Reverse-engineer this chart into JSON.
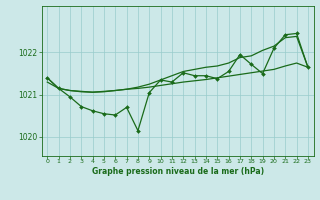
{
  "xlabel": "Graphe pression niveau de la mer (hPa)",
  "bg_color": "#cce8e8",
  "line_color": "#1a6b1a",
  "grid_color": "#99cccc",
  "ylim": [
    1019.55,
    1023.1
  ],
  "xlim": [
    -0.5,
    23.5
  ],
  "yticks": [
    1020,
    1021,
    1022
  ],
  "xticks": [
    0,
    1,
    2,
    3,
    4,
    5,
    6,
    7,
    8,
    9,
    10,
    11,
    12,
    13,
    14,
    15,
    16,
    17,
    18,
    19,
    20,
    21,
    22,
    23
  ],
  "series_jagged": [
    1021.4,
    1021.15,
    1020.95,
    1020.72,
    1020.62,
    1020.55,
    1020.52,
    1020.7,
    1020.15,
    1021.05,
    1021.35,
    1021.3,
    1021.52,
    1021.45,
    1021.45,
    1021.38,
    1021.55,
    1021.95,
    1021.72,
    1021.5,
    1022.1,
    1022.42,
    1022.45,
    1021.65
  ],
  "series_lower_trend": [
    1021.3,
    1021.15,
    1021.1,
    1021.08,
    1021.06,
    1021.08,
    1021.1,
    1021.13,
    1021.15,
    1021.18,
    1021.22,
    1021.26,
    1021.3,
    1021.33,
    1021.36,
    1021.4,
    1021.44,
    1021.48,
    1021.52,
    1021.56,
    1021.6,
    1021.68,
    1021.75,
    1021.65
  ],
  "series_upper_trend": [
    1021.4,
    1021.15,
    1021.1,
    1021.07,
    1021.06,
    1021.07,
    1021.1,
    1021.13,
    1021.18,
    1021.25,
    1021.35,
    1021.45,
    1021.55,
    1021.6,
    1021.65,
    1021.68,
    1021.75,
    1021.88,
    1021.92,
    1022.05,
    1022.15,
    1022.35,
    1022.38,
    1021.65
  ]
}
